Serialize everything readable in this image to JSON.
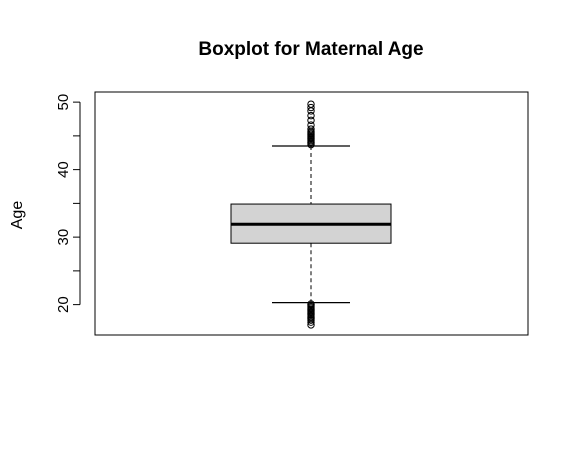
{
  "chart_data": {
    "type": "boxplot",
    "title": "Boxplot for Maternal Age",
    "xlabel": "",
    "ylabel": "Age",
    "ylim": [
      15.5,
      51.5
    ],
    "yticks": [
      20,
      30,
      40,
      50
    ],
    "grid": false,
    "legend": "none",
    "box": {
      "lower_whisker": 20.3,
      "q1": 29.1,
      "median": 31.9,
      "q3": 34.9,
      "upper_whisker": 43.5
    },
    "outliers_high": [
      43.7,
      43.9,
      44.1,
      44.3,
      44.5,
      44.7,
      44.9,
      45.1,
      45.3,
      45.5,
      45.7,
      46.0,
      46.6,
      47.3,
      48.0,
      48.7,
      49.2,
      49.7
    ],
    "outliers_low": [
      20.1,
      19.9,
      19.7,
      19.5,
      19.3,
      19.1,
      18.9,
      18.7,
      18.5,
      18.3,
      18.1,
      17.9,
      17.7,
      17.4,
      17.0
    ],
    "colors": {
      "box_fill": "#d3d3d3",
      "stroke": "#000000",
      "background": "#ffffff"
    }
  }
}
